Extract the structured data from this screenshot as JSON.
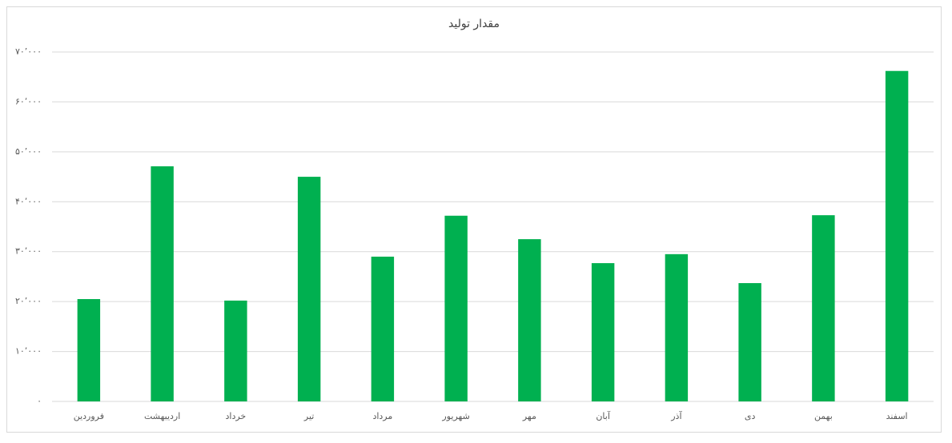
{
  "chart_data": {
    "type": "bar",
    "title": "مقدار تولید",
    "categories": [
      "فروردین",
      "اردیبهشت",
      "خرداد",
      "تیر",
      "مرداد",
      "شهریور",
      "مهر",
      "آبان",
      "آذر",
      "دی",
      "بهمن",
      "اسفند"
    ],
    "values": [
      20500,
      47100,
      20200,
      45000,
      29000,
      37200,
      32500,
      27700,
      29500,
      23700,
      37300,
      66200
    ],
    "color": "#00b050",
    "ylim": [
      0,
      70000
    ],
    "yticks": [
      {
        "value": 0,
        "label": "۰"
      },
      {
        "value": 10000,
        "label": "۱۰٬۰۰۰"
      },
      {
        "value": 20000,
        "label": "۲۰٬۰۰۰"
      },
      {
        "value": 30000,
        "label": "۳۰٬۰۰۰"
      },
      {
        "value": 40000,
        "label": "۴۰٬۰۰۰"
      },
      {
        "value": 50000,
        "label": "۵۰٬۰۰۰"
      },
      {
        "value": 60000,
        "label": "۶۰٬۰۰۰"
      },
      {
        "value": 70000,
        "label": "۷۰٬۰۰۰"
      }
    ],
    "grid": true
  }
}
